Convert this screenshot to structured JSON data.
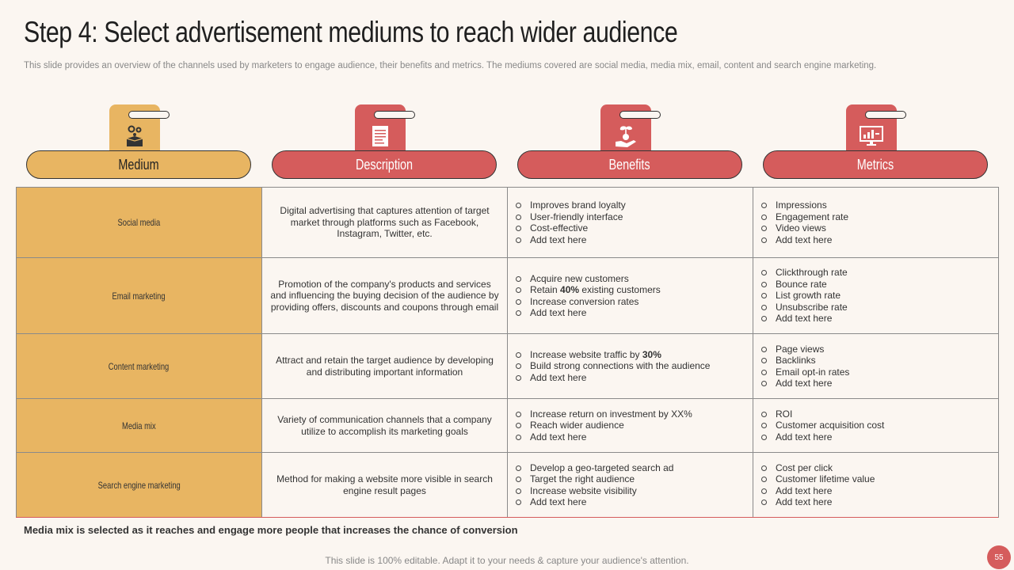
{
  "title": "Step 4: Select advertisement mediums to reach wider audience",
  "subtitle": "This slide provides an overview of the channels used by marketers to engage audience, their benefits and metrics. The mediums covered are social media, media mix, email, content and search engine marketing.",
  "headers": [
    {
      "label": "Medium",
      "icon": "box-gears-icon",
      "color": "#e8b562"
    },
    {
      "label": "Description",
      "icon": "document-icon",
      "color": "#d55c5c"
    },
    {
      "label": "Benefits",
      "icon": "money-plant-hand-icon",
      "color": "#d55c5c"
    },
    {
      "label": "Metrics",
      "icon": "analytics-screen-icon",
      "color": "#d55c5c"
    }
  ],
  "rows": [
    {
      "medium": "Social media",
      "description": "Digital advertising that captures attention of target market through platforms such as Facebook, Instagram, Twitter, etc.",
      "benefits": [
        "Improves brand loyalty",
        "User-friendly interface",
        "Cost-effective",
        "Add text here"
      ],
      "metrics": [
        "Impressions",
        "Engagement rate",
        "Video views",
        "Add text here"
      ]
    },
    {
      "medium": "Email marketing",
      "description": "Promotion of the company's products and services and influencing the buying decision of the audience by providing offers, discounts and coupons through email",
      "benefits": [
        "Acquire new customers",
        "Retain 40% existing customers",
        "Increase conversion rates",
        "Add text here"
      ],
      "metrics": [
        "Clickthrough rate",
        "Bounce rate",
        "List growth rate",
        "Unsubscribe rate",
        "Add text here"
      ]
    },
    {
      "medium": "Content marketing",
      "description": "Attract and retain the target audience by developing and distributing important information",
      "benefits": [
        "Increase website traffic by 30%",
        "Build strong connections with the audience",
        "Add text here"
      ],
      "metrics": [
        "Page views",
        "Backlinks",
        "Email opt-in rates",
        "Add text here"
      ]
    },
    {
      "medium": "Media mix",
      "description": "Variety of communication channels that a company utilize to accomplish its marketing goals",
      "benefits": [
        "Increase return on investment by XX%",
        "Reach wider audience",
        "Add text here"
      ],
      "metrics": [
        "ROI",
        "Customer acquisition cost",
        "Add text here"
      ]
    },
    {
      "medium": "Search engine marketing",
      "description": "Method for making a website more visible in search engine result pages",
      "benefits": [
        "Develop a geo-targeted search ad",
        "Target the right audience",
        "Increase website visibility",
        "Add text here"
      ],
      "metrics": [
        "Cost per click",
        "Customer lifetime value",
        "Add text here",
        "Add text here"
      ]
    }
  ],
  "conclusion": "Media mix is selected as it reaches and engage more people that increases the chance of conversion",
  "footer": "This slide is 100% editable. Adapt it to your needs & capture your audience's attention.",
  "page_number": "55"
}
